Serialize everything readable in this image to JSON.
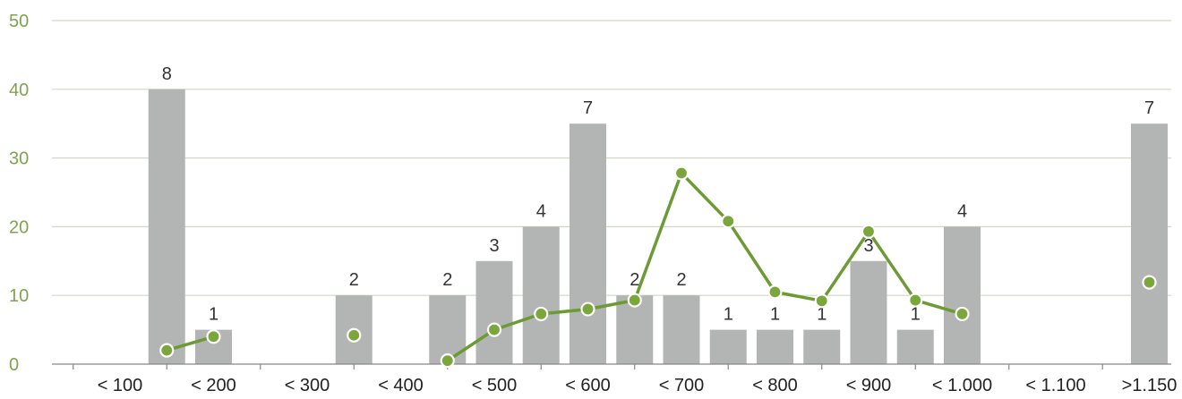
{
  "chart_data": {
    "type": "bar",
    "categories": [
      "< 100",
      "< 200",
      "< 300",
      "< 400",
      "< 500",
      "< 600",
      "< 700",
      "< 800",
      "< 900",
      "< 1.000",
      "< 1.100",
      ">1.150"
    ],
    "yticks": [
      0,
      10,
      20,
      30,
      40,
      50
    ],
    "ylim": [
      0,
      50
    ],
    "grid": true,
    "bars": [
      {
        "x": 1.5,
        "value": 40,
        "label": "8"
      },
      {
        "x": 2.0,
        "value": 5,
        "label": "1"
      },
      {
        "x": 3.5,
        "value": 10,
        "label": "2"
      },
      {
        "x": 4.5,
        "value": 10,
        "label": "2"
      },
      {
        "x": 5.0,
        "value": 15,
        "label": "3"
      },
      {
        "x": 5.5,
        "value": 20,
        "label": "4"
      },
      {
        "x": 6.0,
        "value": 35,
        "label": "7"
      },
      {
        "x": 6.5,
        "value": 10,
        "label": "2"
      },
      {
        "x": 7.0,
        "value": 10,
        "label": "2"
      },
      {
        "x": 7.5,
        "value": 5,
        "label": "1"
      },
      {
        "x": 8.0,
        "value": 5,
        "label": "1"
      },
      {
        "x": 8.5,
        "value": 5,
        "label": "1"
      },
      {
        "x": 9.0,
        "value": 15,
        "label": "3"
      },
      {
        "x": 9.5,
        "value": 5,
        "label": "1"
      },
      {
        "x": 10.0,
        "value": 20,
        "label": "4"
      },
      {
        "x": 12.0,
        "value": 35,
        "label": "7"
      }
    ],
    "line_series": [
      {
        "x": 1.5,
        "y": 2
      },
      {
        "x": 2.0,
        "y": 4
      },
      {
        "x": 4.5,
        "y": 0.5
      },
      {
        "x": 5.0,
        "y": 5
      },
      {
        "x": 5.5,
        "y": 7.3
      },
      {
        "x": 6.0,
        "y": 8
      },
      {
        "x": 6.5,
        "y": 9.3
      },
      {
        "x": 7.0,
        "y": 27.8
      },
      {
        "x": 7.5,
        "y": 20.8
      },
      {
        "x": 8.0,
        "y": 10.5
      },
      {
        "x": 8.5,
        "y": 9.2
      },
      {
        "x": 9.0,
        "y": 19.3
      },
      {
        "x": 9.5,
        "y": 9.3
      },
      {
        "x": 10.0,
        "y": 7.3
      }
    ],
    "line_points_unconnected": [
      {
        "x": 3.5,
        "y": 4.2
      },
      {
        "x": 12.0,
        "y": 11.9
      }
    ],
    "colors": {
      "bar": "#b3b5b4",
      "line": "#6c9a35",
      "point": "#7aa63c",
      "ytick": "#7fa34f",
      "grid": "#cfd8c4"
    }
  }
}
